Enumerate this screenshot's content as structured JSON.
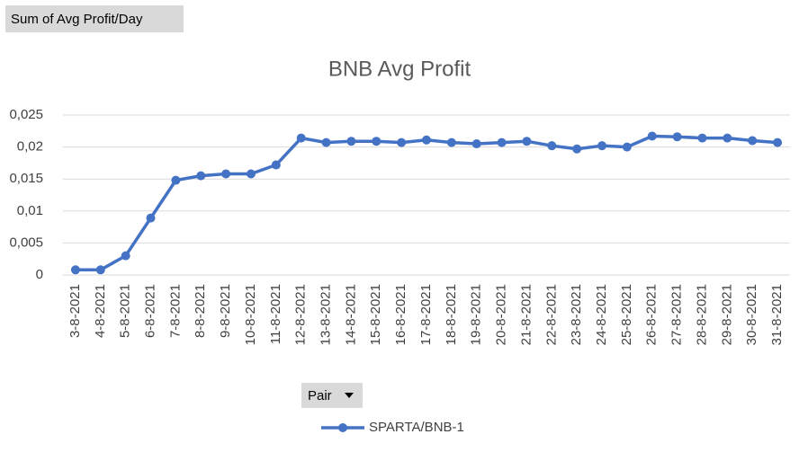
{
  "field_buttons": {
    "value": "Sum of Avg Profit/Day",
    "axis": "Pair"
  },
  "chart_data": {
    "type": "line",
    "title": "BNB Avg Profit",
    "categories": [
      "3-8-2021",
      "4-8-2021",
      "5-8-2021",
      "6-8-2021",
      "7-8-2021",
      "8-8-2021",
      "9-8-2021",
      "10-8-2021",
      "11-8-2021",
      "12-8-2021",
      "13-8-2021",
      "14-8-2021",
      "15-8-2021",
      "16-8-2021",
      "17-8-2021",
      "18-8-2021",
      "19-8-2021",
      "20-8-2021",
      "21-8-2021",
      "22-8-2021",
      "23-8-2021",
      "24-8-2021",
      "25-8-2021",
      "26-8-2021",
      "27-8-2021",
      "28-8-2021",
      "29-8-2021",
      "30-8-2021",
      "31-8-2021"
    ],
    "series": [
      {
        "name": "SPARTA/BNB-1",
        "color": "#4472c4",
        "values": [
          0.0008,
          0.0008,
          0.003,
          0.0089,
          0.0148,
          0.0155,
          0.0158,
          0.0158,
          0.0172,
          0.0214,
          0.0207,
          0.0209,
          0.0209,
          0.0207,
          0.0211,
          0.0207,
          0.0205,
          0.0207,
          0.0209,
          0.0202,
          0.0197,
          0.0202,
          0.02,
          0.0217,
          0.0216,
          0.0214,
          0.0214,
          0.021,
          0.0207
        ]
      }
    ],
    "ylim": [
      0,
      0.025
    ],
    "yticks": [
      0,
      {
        "value": 0.005,
        "label": "0,005"
      },
      {
        "value": 0.01,
        "label": "0,01"
      },
      {
        "value": 0.015,
        "label": "0,015"
      },
      {
        "value": 0.02,
        "label": "0,02"
      },
      {
        "value": 0.025,
        "label": "0,025"
      }
    ],
    "grid": true
  }
}
